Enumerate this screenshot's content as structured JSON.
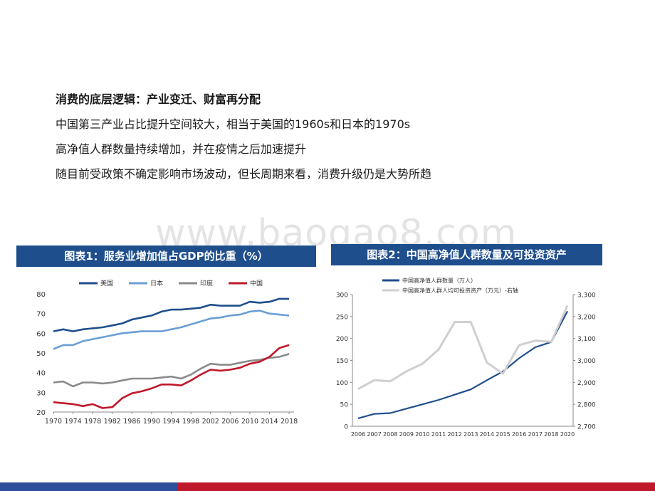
{
  "slide": {
    "bullets": [
      "消费的底层逻辑：产业变迁、财富再分配",
      "中国第三产业占比提升空间较大，相当于美国的1960s和日本的1970s",
      "高净值人群数量持续增加，并在疫情之后加速提升",
      "随目前受政策不确定影响市场波动，但长周期来看，消费升级仍是大势所趋"
    ],
    "watermark": "www.baogao8.com"
  },
  "colors": {
    "title_bar": "#1f4e8c",
    "us": "#1f4e8c",
    "japan": "#6a9fd4",
    "india": "#8a8a8a",
    "china": "#c0182b",
    "hnw_count": "#1f4e8c",
    "hnw_assets": "#cfcfcf",
    "footer_blue": "#2e4f9c",
    "footer_red": "#c0182b"
  },
  "chart_data": [
    {
      "type": "line",
      "title": "图表1：服务业增加值占GDP的比重（%）",
      "ylim": [
        20,
        80
      ],
      "yticks": [
        20,
        30,
        40,
        50,
        60,
        70,
        80
      ],
      "xlim": [
        1970,
        2019
      ],
      "xticks": [
        1970,
        1974,
        1978,
        1982,
        1986,
        1990,
        1994,
        1998,
        2002,
        2006,
        2010,
        2014,
        2018
      ],
      "legend_position": "top",
      "series": [
        {
          "name": "美国",
          "color": "#1f4e8c",
          "x": [
            1970,
            1972,
            1974,
            1976,
            1978,
            1980,
            1982,
            1984,
            1986,
            1988,
            1990,
            1992,
            1994,
            1996,
            1998,
            2000,
            2002,
            2004,
            2006,
            2008,
            2010,
            2012,
            2014,
            2016,
            2018
          ],
          "y": [
            61,
            62,
            61,
            62,
            62.5,
            63,
            64,
            65,
            67,
            68,
            69,
            71,
            72,
            72,
            72.5,
            73,
            74.5,
            74,
            74,
            74,
            76,
            75.5,
            76,
            77.5,
            77.5
          ]
        },
        {
          "name": "日本",
          "color": "#6a9fd4",
          "x": [
            1970,
            1972,
            1974,
            1976,
            1978,
            1980,
            1982,
            1984,
            1986,
            1988,
            1990,
            1992,
            1994,
            1996,
            1998,
            2000,
            2002,
            2004,
            2006,
            2008,
            2010,
            2012,
            2014,
            2016,
            2018
          ],
          "y": [
            52,
            54,
            54,
            56,
            57,
            58,
            59,
            60,
            60.5,
            61,
            61,
            61,
            62,
            63,
            64.5,
            66,
            67.5,
            68,
            69,
            69.5,
            71,
            71.5,
            70,
            69.5,
            69
          ]
        },
        {
          "name": "印度",
          "color": "#8a8a8a",
          "x": [
            1970,
            1972,
            1974,
            1976,
            1978,
            1980,
            1982,
            1984,
            1986,
            1988,
            1990,
            1992,
            1994,
            1996,
            1998,
            2000,
            2002,
            2004,
            2006,
            2008,
            2010,
            2012,
            2014,
            2016,
            2018
          ],
          "y": [
            35,
            35.5,
            33,
            35,
            35,
            34.5,
            35,
            36,
            37,
            37,
            37,
            37.5,
            38,
            37,
            39,
            42,
            44.5,
            44,
            44,
            45,
            46,
            46.5,
            47.5,
            48,
            49.5
          ]
        },
        {
          "name": "中国",
          "color": "#c0182b",
          "x": [
            1970,
            1972,
            1974,
            1976,
            1978,
            1980,
            1982,
            1984,
            1986,
            1988,
            1990,
            1992,
            1994,
            1996,
            1998,
            2000,
            2002,
            2004,
            2006,
            2008,
            2010,
            2012,
            2014,
            2016,
            2018
          ],
          "y": [
            25,
            24.5,
            24,
            23,
            24,
            22,
            22.5,
            27,
            29.5,
            30.5,
            32,
            34,
            34,
            33.5,
            36,
            39,
            41.5,
            41,
            41.5,
            42.5,
            44.5,
            45.5,
            48,
            52.5,
            54
          ]
        }
      ]
    },
    {
      "type": "line",
      "title": "图表2：中国高净值人群数量及可投资资产",
      "ylim_left": [
        0,
        300
      ],
      "yticks_left": [
        0,
        50,
        100,
        150,
        200,
        250,
        300
      ],
      "ylim_right": [
        2700,
        3300
      ],
      "yticks_right": [
        "2,700",
        "2,800",
        "2,900",
        "3,000",
        "3,100",
        "3,200",
        "3,300"
      ],
      "categories": [
        "2006",
        "2007",
        "2008",
        "2009",
        "2010",
        "2011",
        "2012",
        "2013",
        "2014",
        "2015",
        "2016",
        "2017",
        "2018",
        "2020"
      ],
      "legend_position": "top-left",
      "series": [
        {
          "name": "中国高净值人群数量（万人）",
          "axis": "left",
          "color": "#1f4e8c",
          "values": [
            18,
            28,
            30,
            40,
            50,
            60,
            72,
            84,
            105,
            125,
            155,
            180,
            192,
            262
          ]
        },
        {
          "name": "中国高净值人群人均可投资资产（万元）-右轴",
          "axis": "right",
          "color": "#cfcfcf",
          "values": [
            2870,
            2910,
            2905,
            2950,
            2985,
            3050,
            3175,
            3175,
            2990,
            2940,
            3070,
            3090,
            3085,
            3250
          ]
        }
      ]
    }
  ]
}
